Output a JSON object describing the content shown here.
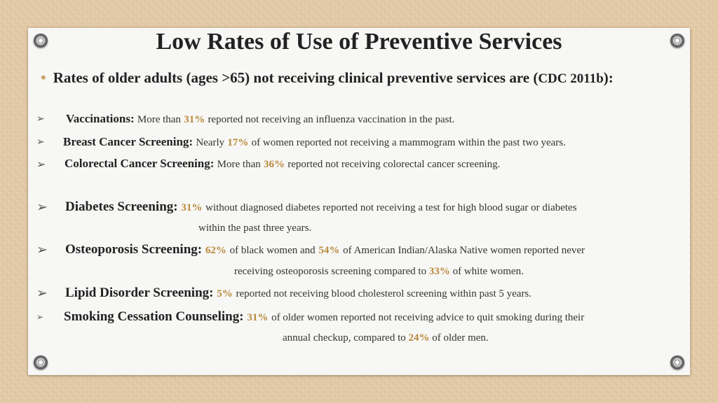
{
  "title": "Low Rates of Use of Preventive Services",
  "intro": {
    "text": "Rates of older adults (ages >65) not receiving clinical preventive services are (",
    "cite": "CDC 2011b",
    "close": "):"
  },
  "items": [
    {
      "label": "Vaccinations:",
      "pre": "More than",
      "pct": "31%",
      "post": "reported not receiving an influenza vaccination in the past."
    },
    {
      "label": "Breast Cancer Screening:",
      "pre": "Nearly",
      "pct": "17%",
      "post": "of women reported not receiving a mammogram within the past two years."
    },
    {
      "label": "Colorectal Cancer Screening:",
      "pre": "More than",
      "pct": "36%",
      "post": "reported not receiving colorectal cancer screening."
    },
    {
      "label": "Diabetes Screening:",
      "pct": "31%",
      "post": "without diagnosed diabetes reported not receiving a test for high blood sugar or diabetes",
      "line2": "within the past three years."
    },
    {
      "label": "Osteoporosis Screening:",
      "pct": "62%",
      "mid1": "of black women and",
      "pct2": "54%",
      "mid2": "of American Indian/Alaska Native women reported never",
      "line2a": "receiving osteoporosis screening compared to",
      "pct3": "33%",
      "line2b": "of white women."
    },
    {
      "label": "Lipid Disorder Screening:",
      "pct": "5%",
      "post": "reported not receiving blood cholesterol screening within past 5 years."
    },
    {
      "label": "Smoking Cessation Counseling:",
      "pct": "31%",
      "post": "of older women reported not receiving advice to quit smoking during their",
      "line2a": "annual checkup, compared to",
      "pct2": "24%",
      "line2b": "of older men."
    }
  ]
}
